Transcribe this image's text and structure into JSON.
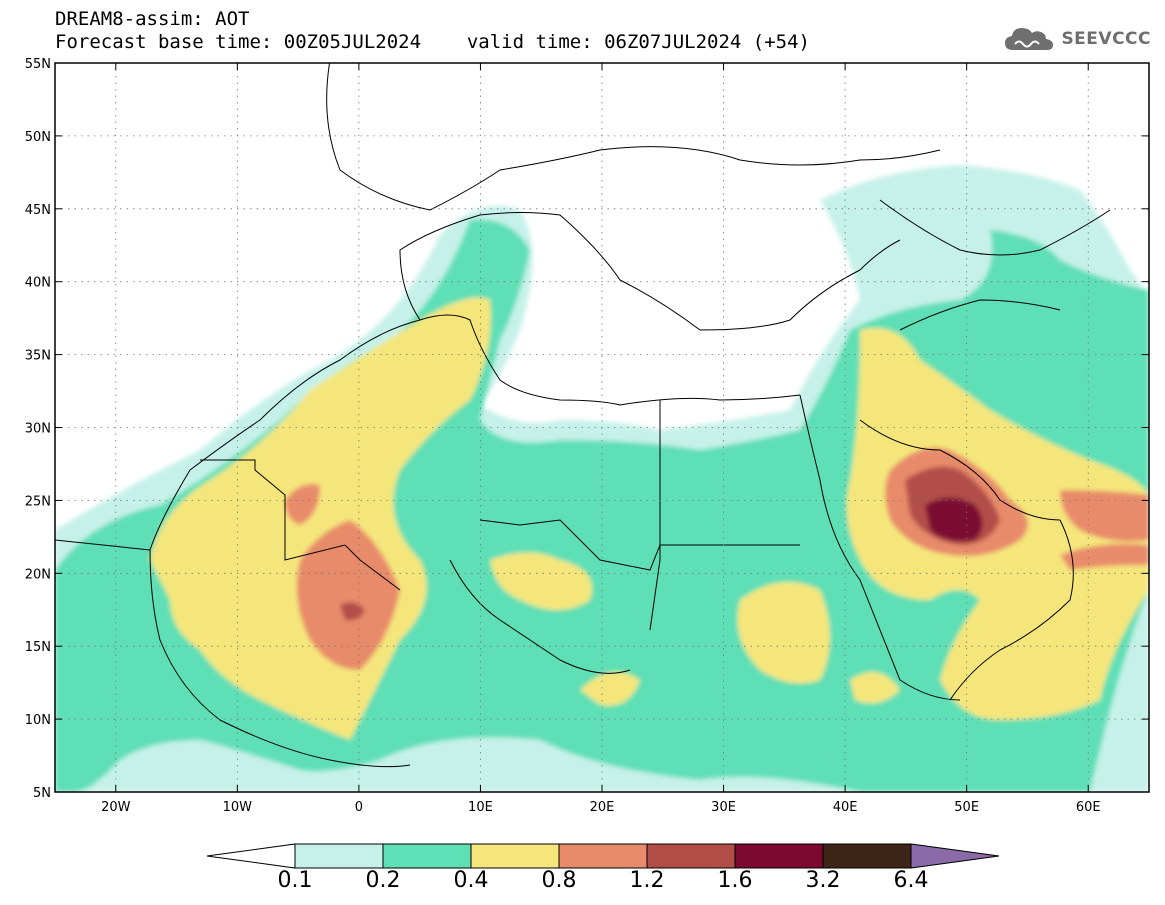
{
  "header": {
    "title": "DREAM8-assim: AOT",
    "base_label": "Forecast base time: 00Z05JUL2024",
    "valid_label": "valid time: 06Z07JUL2024 (+54)"
  },
  "logo": {
    "text": "SEEVCCC",
    "icon": "cloud-icon"
  },
  "map": {
    "lon_range": [
      -25,
      65
    ],
    "lat_range": [
      5,
      55
    ],
    "lat_ticks": [
      "5N",
      "10N",
      "15N",
      "20N",
      "25N",
      "30N",
      "35N",
      "40N",
      "45N",
      "50N",
      "55N"
    ],
    "lon_ticks": [
      "20W",
      "10W",
      "0",
      "10E",
      "20E",
      "30E",
      "40E",
      "50E",
      "60E"
    ],
    "gridlines": "dotted"
  },
  "legend": {
    "labels": [
      "0.1",
      "0.2",
      "0.4",
      "0.8",
      "1.2",
      "1.6",
      "3.2",
      "6.4"
    ],
    "colors": [
      "#ffffff",
      "#c6f1e9",
      "#5edfb6",
      "#f5e67c",
      "#e88b6a",
      "#b24e48",
      "#7b0930",
      "#3d2518",
      "#8a6aa8"
    ]
  }
}
